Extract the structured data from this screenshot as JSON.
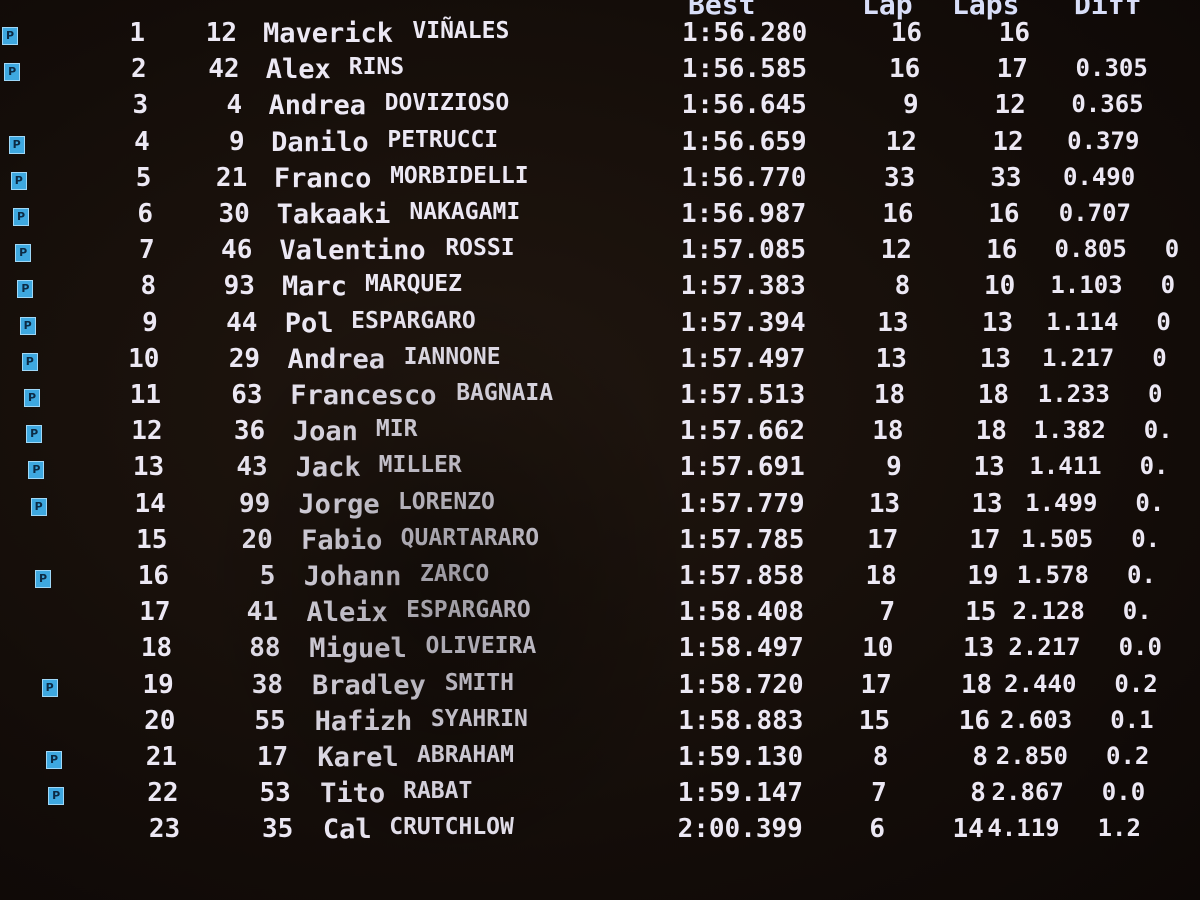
{
  "headers": {
    "best": "Best",
    "lap": "Lap",
    "laps": "Laps",
    "diff": "Diff"
  },
  "pit_badge": "P",
  "rows": [
    {
      "pos": "1",
      "num": "12",
      "first": "Maverick",
      "last": "VIÑALES",
      "best": "1:56.280",
      "lap": "16",
      "laps": "16",
      "diff": "",
      "extra": "",
      "pit": true
    },
    {
      "pos": "2",
      "num": "42",
      "first": "Alex",
      "last": "RINS",
      "best": "1:56.585",
      "lap": "16",
      "laps": "17",
      "diff": "0.305",
      "extra": "",
      "pit": true
    },
    {
      "pos": "3",
      "num": "4",
      "first": "Andrea",
      "last": "DOVIZIOSO",
      "best": "1:56.645",
      "lap": "9",
      "laps": "12",
      "diff": "0.365",
      "extra": "",
      "pit": false
    },
    {
      "pos": "4",
      "num": "9",
      "first": "Danilo",
      "last": "PETRUCCI",
      "best": "1:56.659",
      "lap": "12",
      "laps": "12",
      "diff": "0.379",
      "extra": "",
      "pit": true
    },
    {
      "pos": "5",
      "num": "21",
      "first": "Franco",
      "last": "MORBIDELLI",
      "best": "1:56.770",
      "lap": "33",
      "laps": "33",
      "diff": "0.490",
      "extra": "",
      "pit": true
    },
    {
      "pos": "6",
      "num": "30",
      "first": "Takaaki",
      "last": "NAKAGAMI",
      "best": "1:56.987",
      "lap": "16",
      "laps": "16",
      "diff": "0.707",
      "extra": "",
      "pit": true
    },
    {
      "pos": "7",
      "num": "46",
      "first": "Valentino",
      "last": "ROSSI",
      "best": "1:57.085",
      "lap": "12",
      "laps": "16",
      "diff": "0.805",
      "extra": "0",
      "pit": true
    },
    {
      "pos": "8",
      "num": "93",
      "first": "Marc",
      "last": "MARQUEZ",
      "best": "1:57.383",
      "lap": "8",
      "laps": "10",
      "diff": "1.103",
      "extra": "0",
      "pit": true
    },
    {
      "pos": "9",
      "num": "44",
      "first": "Pol",
      "last": "ESPARGARO",
      "best": "1:57.394",
      "lap": "13",
      "laps": "13",
      "diff": "1.114",
      "extra": "0",
      "pit": true
    },
    {
      "pos": "10",
      "num": "29",
      "first": "Andrea",
      "last": "IANNONE",
      "best": "1:57.497",
      "lap": "13",
      "laps": "13",
      "diff": "1.217",
      "extra": "0",
      "pit": true
    },
    {
      "pos": "11",
      "num": "63",
      "first": "Francesco",
      "last": "BAGNAIA",
      "best": "1:57.513",
      "lap": "18",
      "laps": "18",
      "diff": "1.233",
      "extra": "0",
      "pit": true
    },
    {
      "pos": "12",
      "num": "36",
      "first": "Joan",
      "last": "MIR",
      "best": "1:57.662",
      "lap": "18",
      "laps": "18",
      "diff": "1.382",
      "extra": "0.",
      "pit": true
    },
    {
      "pos": "13",
      "num": "43",
      "first": "Jack",
      "last": "MILLER",
      "best": "1:57.691",
      "lap": "9",
      "laps": "13",
      "diff": "1.411",
      "extra": "0.",
      "pit": true
    },
    {
      "pos": "14",
      "num": "99",
      "first": "Jorge",
      "last": "LORENZO",
      "best": "1:57.779",
      "lap": "13",
      "laps": "13",
      "diff": "1.499",
      "extra": "0.",
      "pit": true
    },
    {
      "pos": "15",
      "num": "20",
      "first": "Fabio",
      "last": "QUARTARARO",
      "best": "1:57.785",
      "lap": "17",
      "laps": "17",
      "diff": "1.505",
      "extra": "0.",
      "pit": false
    },
    {
      "pos": "16",
      "num": "5",
      "first": "Johann",
      "last": "ZARCO",
      "best": "1:57.858",
      "lap": "18",
      "laps": "19",
      "diff": "1.578",
      "extra": "0.",
      "pit": true
    },
    {
      "pos": "17",
      "num": "41",
      "first": "Aleix",
      "last": "ESPARGARO",
      "best": "1:58.408",
      "lap": "7",
      "laps": "15",
      "diff": "2.128",
      "extra": "0.",
      "pit": false
    },
    {
      "pos": "18",
      "num": "88",
      "first": "Miguel",
      "last": "OLIVEIRA",
      "best": "1:58.497",
      "lap": "10",
      "laps": "13",
      "diff": "2.217",
      "extra": "0.0",
      "pit": false
    },
    {
      "pos": "19",
      "num": "38",
      "first": "Bradley",
      "last": "SMITH",
      "best": "1:58.720",
      "lap": "17",
      "laps": "18",
      "diff": "2.440",
      "extra": "0.2",
      "pit": true
    },
    {
      "pos": "20",
      "num": "55",
      "first": "Hafizh",
      "last": "SYAHRIN",
      "best": "1:58.883",
      "lap": "15",
      "laps": "16",
      "diff": "2.603",
      "extra": "0.1",
      "pit": false
    },
    {
      "pos": "21",
      "num": "17",
      "first": "Karel",
      "last": "ABRAHAM",
      "best": "1:59.130",
      "lap": "8",
      "laps": "8",
      "diff": "2.850",
      "extra": "0.2",
      "pit": true
    },
    {
      "pos": "22",
      "num": "53",
      "first": "Tito",
      "last": "RABAT",
      "best": "1:59.147",
      "lap": "7",
      "laps": "8",
      "diff": "2.867",
      "extra": "0.0",
      "pit": true
    },
    {
      "pos": "23",
      "num": "35",
      "first": "Cal",
      "last": "CRUTCHLOW",
      "best": "2:00.399",
      "lap": "6",
      "laps": "14",
      "diff": "4.119",
      "extra": "1.2",
      "pit": false
    }
  ]
}
